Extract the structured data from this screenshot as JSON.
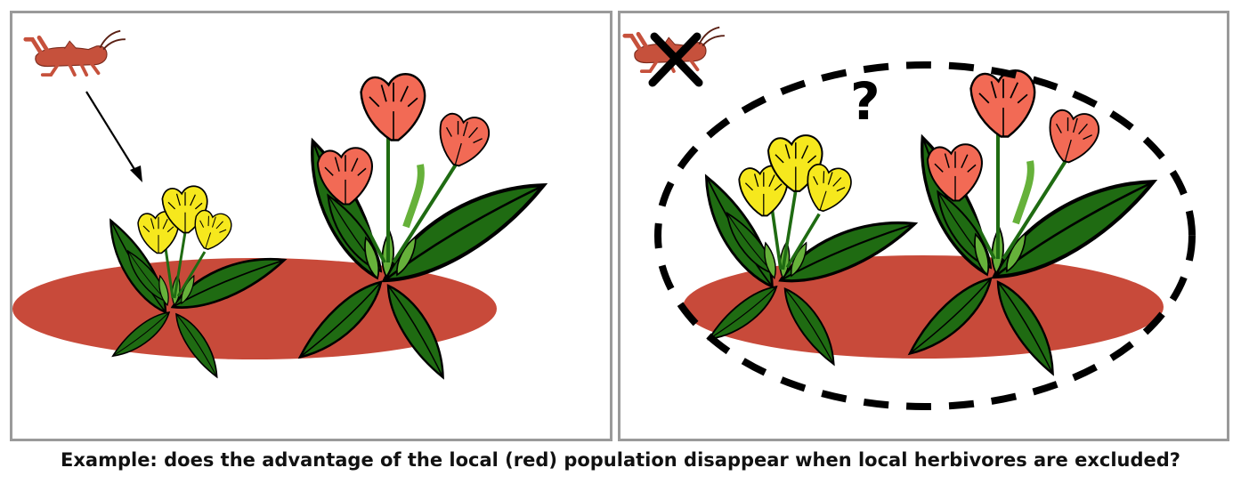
{
  "caption": "Example: does the advantage of the local (red) population disappear when local herbivores are excluded?",
  "right_panel": {
    "question_mark": "?"
  },
  "colors": {
    "ground": "#c84a3a",
    "herbivore": "#c6513c",
    "leaf": "#1f6b12",
    "leaf_light": "#66b13a",
    "flower_red": "#f26a55",
    "flower_yellow": "#f6e81d",
    "panel_border": "#9a9a9a",
    "exclusion_line": "#000000"
  },
  "icons": [
    "herbivore-icon",
    "arrow-icon",
    "exclusion-x-icon",
    "exclusion-ellipse"
  ]
}
